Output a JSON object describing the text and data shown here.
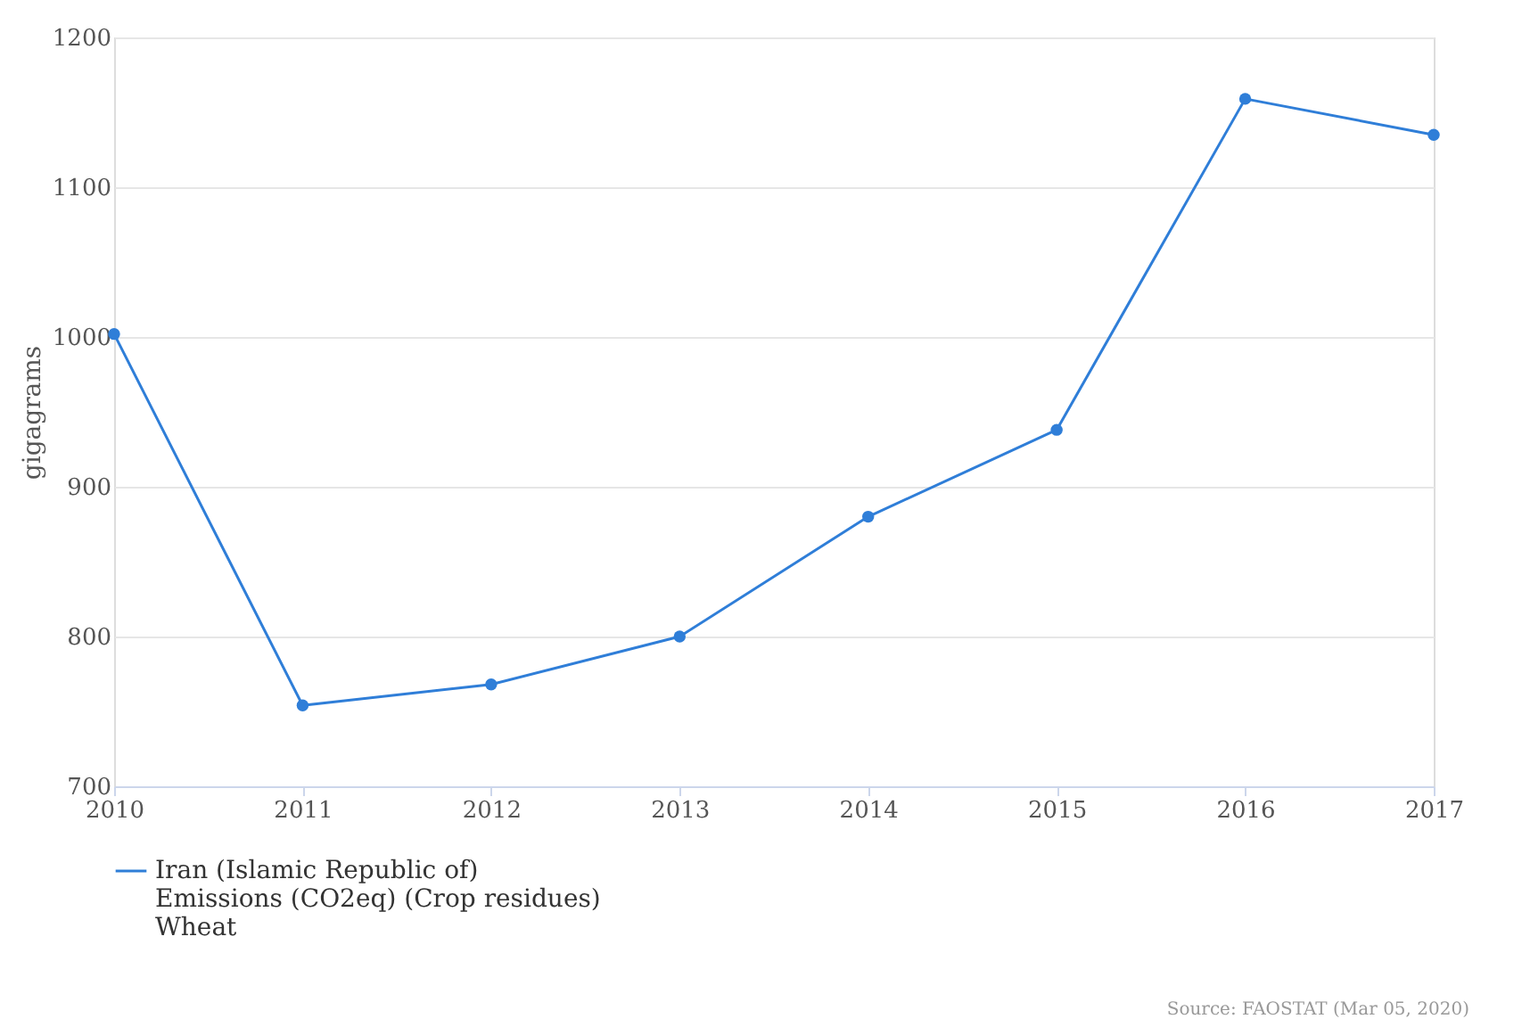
{
  "chart_data": {
    "type": "line",
    "ylabel": "gigagrams",
    "x": [
      2010,
      2011,
      2012,
      2013,
      2014,
      2015,
      2016,
      2017
    ],
    "series": [
      {
        "name": "Iran (Islamic Republic of)\nEmissions (CO2eq) (Crop residues)\nWheat",
        "color": "#2f7ed8",
        "values": [
          1002,
          754,
          768,
          800,
          880,
          938,
          1159,
          1135
        ]
      }
    ],
    "xlim": [
      2010,
      2017
    ],
    "xticks": [
      2010,
      2011,
      2012,
      2013,
      2014,
      2015,
      2016,
      2017
    ],
    "ylim": [
      700,
      1200
    ],
    "yticks": [
      700,
      800,
      900,
      1000,
      1100,
      1200
    ],
    "grid": "y",
    "legend": "bottom",
    "marker": "circle",
    "line_style": "solid",
    "annotations": [
      "Source: FAOSTAT (Mar 05, 2020)"
    ]
  }
}
